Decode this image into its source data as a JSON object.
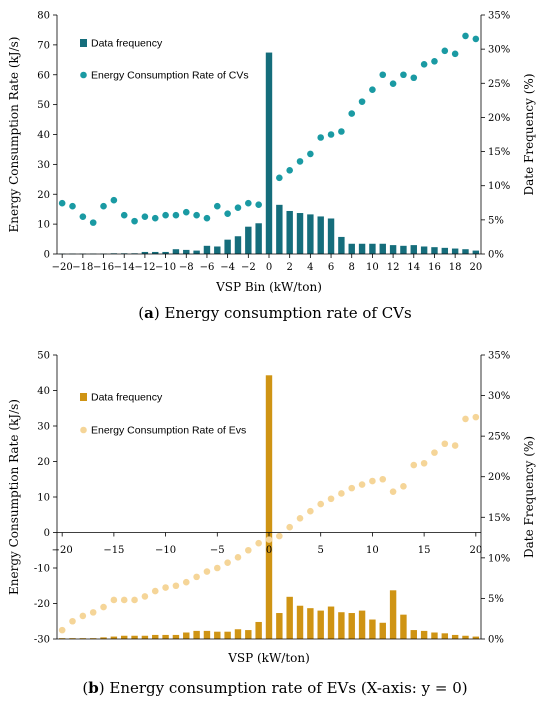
{
  "chart_data": [
    {
      "type": "bar",
      "panel_caption_letter": "a",
      "caption": "Energy consumption rate of CVs",
      "xlabel": "VSP Bin (kW/ton)",
      "ylabel": "Energy Consumption Rate    (kJ/s)",
      "y2label": "Date Frequency (%)",
      "xlim": [
        -20.5,
        20.5
      ],
      "ylim": [
        0,
        80
      ],
      "y2lim": [
        0,
        35
      ],
      "xticks": [
        -20,
        -18,
        -16,
        -14,
        -12,
        -10,
        -8,
        -6,
        -4,
        -2,
        0,
        2,
        4,
        6,
        8,
        10,
        12,
        14,
        16,
        18,
        20
      ],
      "yticks": [
        0,
        10,
        20,
        30,
        40,
        50,
        60,
        70,
        80
      ],
      "y2ticks": [
        "0%",
        "5%",
        "10%",
        "15%",
        "20%",
        "25%",
        "30%",
        "35%"
      ],
      "legend": {
        "position": "top-left"
      },
      "bar_color": "#156d7b",
      "point_color": "#1a9aa3",
      "series": [
        {
          "name": "Data frequency",
          "kind": "bar",
          "axis": "right",
          "x": [
            -20,
            -19,
            -18,
            -17,
            -16,
            -15,
            -14,
            -13,
            -12,
            -11,
            -10,
            -9,
            -8,
            -7,
            -6,
            -5,
            -4,
            -3,
            -2,
            -1,
            0,
            1,
            2,
            3,
            4,
            5,
            6,
            7,
            8,
            9,
            10,
            11,
            12,
            13,
            14,
            15,
            16,
            17,
            18,
            19,
            20
          ],
          "values": [
            0.05,
            0.05,
            0.05,
            0.05,
            0.05,
            0.1,
            0.1,
            0.1,
            0.3,
            0.3,
            0.3,
            0.7,
            0.6,
            0.5,
            1.2,
            1.1,
            2.1,
            2.6,
            4.0,
            4.5,
            29.5,
            7.2,
            6.3,
            6.0,
            5.8,
            5.5,
            5.2,
            2.5,
            1.5,
            1.5,
            1.5,
            1.5,
            1.3,
            1.2,
            1.3,
            1.1,
            1.0,
            0.9,
            0.8,
            0.7,
            0.5
          ]
        },
        {
          "name": "Energy Consumption Rate of CVs",
          "kind": "scatter",
          "axis": "left",
          "x": [
            -20,
            -19,
            -18,
            -17,
            -16,
            -15,
            -14,
            -13,
            -12,
            -11,
            -10,
            -9,
            -8,
            -7,
            -6,
            -5,
            -4,
            -3,
            -2,
            -1,
            1,
            2,
            3,
            4,
            5,
            6,
            7,
            8,
            9,
            10,
            11,
            12,
            13,
            14,
            15,
            16,
            17,
            18,
            19,
            20
          ],
          "values": [
            17,
            16,
            12.5,
            10.5,
            16,
            18,
            13,
            11,
            12.5,
            12,
            13,
            13,
            14,
            13,
            12,
            16,
            13.5,
            15.5,
            17,
            16.5,
            25.5,
            28,
            31,
            33.5,
            39,
            40,
            41,
            47,
            51,
            55,
            60,
            57,
            60,
            59,
            63.5,
            64.5,
            68,
            67,
            73,
            72
          ]
        }
      ]
    },
    {
      "type": "bar",
      "panel_caption_letter": "b",
      "caption": "Energy consumption rate of EVs (X-axis: y = 0)",
      "xlabel": "VSP (kW/ton)",
      "ylabel": "Energy Consumption Rate    (kJ/s)",
      "y2label": "Date Frequency (%)",
      "xlim": [
        -20.5,
        20.5
      ],
      "ylim": [
        -30,
        50
      ],
      "y2lim": [
        0,
        35
      ],
      "xticks": [
        -20,
        -15,
        -10,
        -5,
        0,
        5,
        10,
        15,
        20
      ],
      "yticks": [
        -30,
        -20,
        -10,
        0,
        10,
        20,
        30,
        40,
        50
      ],
      "y2ticks": [
        "0%",
        "5%",
        "10%",
        "15%",
        "20%",
        "25%",
        "30%",
        "35%"
      ],
      "legend": {
        "position": "top-left"
      },
      "bar_color": "#cf9414",
      "point_color": "#f5d598",
      "series": [
        {
          "name": "Data frequency",
          "kind": "bar",
          "axis": "right",
          "x": [
            -20,
            -19,
            -18,
            -17,
            -16,
            -15,
            -14,
            -13,
            -12,
            -11,
            -10,
            -9,
            -8,
            -7,
            -6,
            -5,
            -4,
            -3,
            -2,
            -1,
            0,
            1,
            2,
            3,
            4,
            5,
            6,
            7,
            8,
            9,
            10,
            11,
            12,
            13,
            14,
            15,
            16,
            17,
            18,
            19,
            20
          ],
          "values": [
            0.1,
            0.1,
            0.1,
            0.1,
            0.2,
            0.3,
            0.4,
            0.4,
            0.4,
            0.5,
            0.5,
            0.5,
            0.8,
            1.0,
            1.0,
            0.9,
            0.9,
            1.2,
            1.1,
            2.1,
            32.5,
            3.2,
            5.2,
            4.1,
            3.8,
            3.5,
            4.0,
            3.3,
            3.2,
            3.5,
            2.4,
            2.0,
            6.0,
            3.0,
            1.1,
            1.0,
            0.8,
            0.7,
            0.5,
            0.4,
            0.3
          ]
        },
        {
          "name": "Energy Consumption Rate of Evs",
          "kind": "scatter",
          "axis": "left",
          "x": [
            -20,
            -19,
            -18,
            -17,
            -16,
            -15,
            -14,
            -13,
            -12,
            -11,
            -10,
            -9,
            -8,
            -7,
            -6,
            -5,
            -4,
            -3,
            -2,
            -1,
            0,
            1,
            2,
            3,
            4,
            5,
            6,
            7,
            8,
            9,
            10,
            11,
            12,
            13,
            14,
            15,
            16,
            17,
            18,
            19,
            20
          ],
          "values": [
            -27.5,
            -25,
            -23.5,
            -22.5,
            -21,
            -19,
            -19,
            -19,
            -18,
            -16.5,
            -15.5,
            -15,
            -14,
            -12.5,
            -11,
            -10,
            -8.5,
            -7,
            -5,
            -3,
            -2,
            -1,
            1.5,
            4,
            6,
            8,
            9.5,
            11,
            12.5,
            13.5,
            14.5,
            15,
            11.5,
            13,
            19,
            19.5,
            22.5,
            25,
            24.5,
            32,
            32.5
          ]
        }
      ]
    }
  ]
}
